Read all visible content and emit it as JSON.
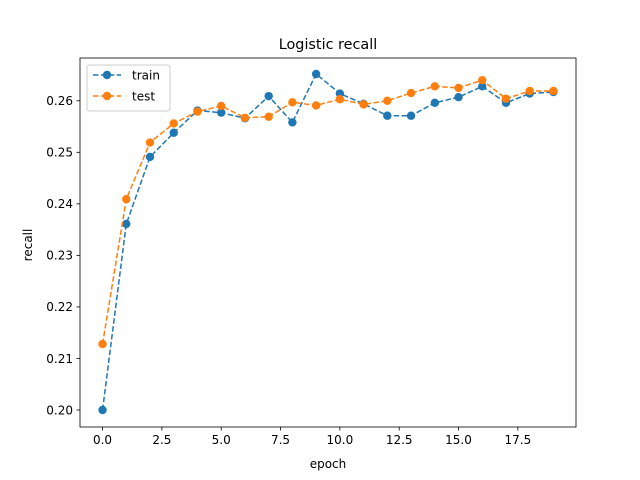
{
  "chart_data": {
    "type": "line",
    "title": "Logistic recall",
    "xlabel": "epoch",
    "ylabel": "recall",
    "xlim": [
      -0.95,
      19.95
    ],
    "ylim": [
      0.1967,
      0.2683
    ],
    "xticks": [
      0.0,
      2.5,
      5.0,
      7.5,
      10.0,
      12.5,
      15.0,
      17.5
    ],
    "xtick_labels": [
      "0.0",
      "2.5",
      "5.0",
      "7.5",
      "10.0",
      "12.5",
      "15.0",
      "17.5"
    ],
    "yticks": [
      0.2,
      0.21,
      0.22,
      0.23,
      0.24,
      0.25,
      0.26
    ],
    "ytick_labels": [
      "0.20",
      "0.21",
      "0.22",
      "0.23",
      "0.24",
      "0.25",
      "0.26"
    ],
    "grid": false,
    "legend_position": "top-left",
    "x": [
      0,
      1,
      2,
      3,
      4,
      5,
      6,
      7,
      8,
      9,
      10,
      11,
      12,
      13,
      14,
      15,
      16,
      17,
      18,
      19
    ],
    "series": [
      {
        "name": "train",
        "color": "#1f77b4",
        "line_style": "dashed",
        "marker": "circle",
        "values": [
          0.2,
          0.2361,
          0.2491,
          0.2538,
          0.2581,
          0.2577,
          0.2566,
          0.2609,
          0.2558,
          0.2652,
          0.2614,
          0.2594,
          0.2571,
          0.2571,
          0.2596,
          0.2607,
          0.2628,
          0.2596,
          0.2614,
          0.2617
        ]
      },
      {
        "name": "test",
        "color": "#ff7f0e",
        "line_style": "dashed",
        "marker": "circle",
        "values": [
          0.2128,
          0.2409,
          0.2519,
          0.2556,
          0.2579,
          0.259,
          0.2567,
          0.2569,
          0.2597,
          0.2591,
          0.2603,
          0.2593,
          0.26,
          0.2615,
          0.2628,
          0.2625,
          0.264,
          0.2604,
          0.2619,
          0.2619
        ]
      }
    ]
  }
}
